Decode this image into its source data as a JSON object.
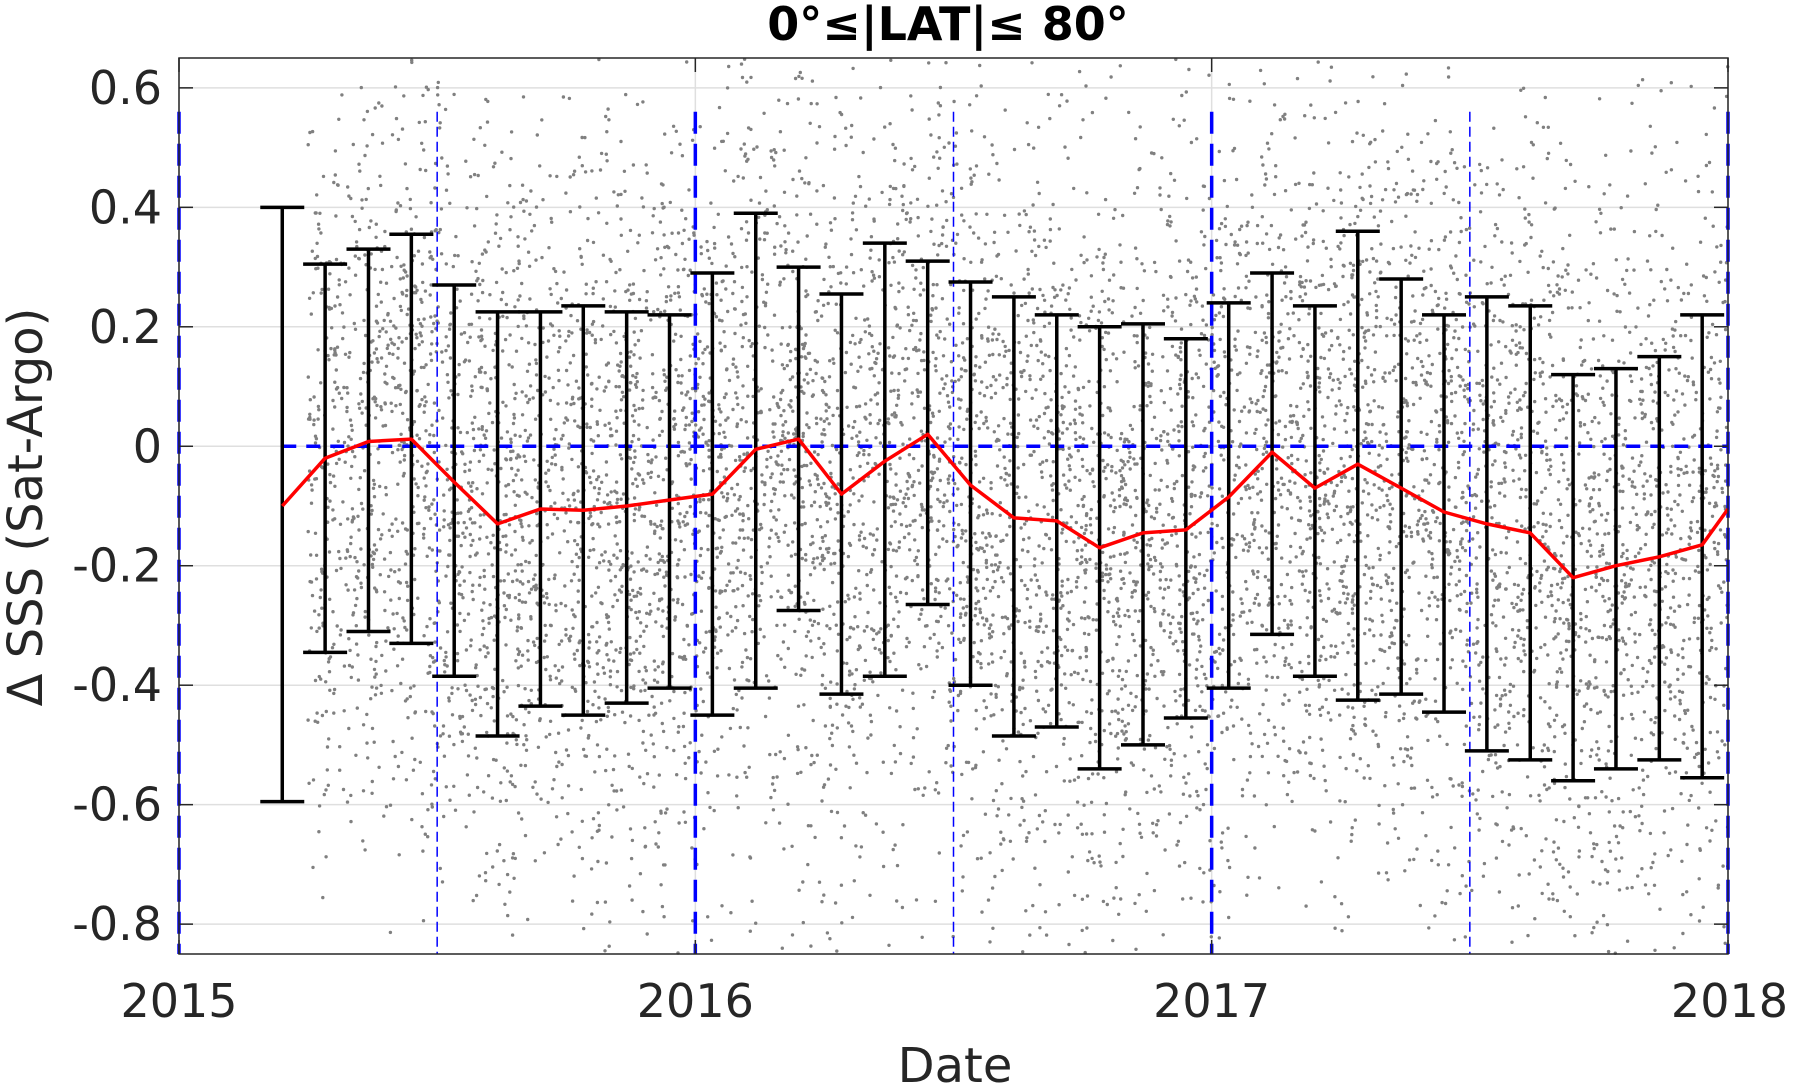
{
  "chart_data": {
    "type": "scatter",
    "title": "0°≤|LAT|≤ 80°",
    "xlabel": "Date",
    "ylabel": "Δ SSS (Sat-Argo)",
    "xlim": [
      2015.0,
      2018.0
    ],
    "ylim": [
      -0.85,
      0.65
    ],
    "xticks": [
      2015,
      2016,
      2017,
      2018
    ],
    "xtick_labels": [
      "2015",
      "2016",
      "2017",
      "2018"
    ],
    "yticks": [
      0.6,
      0.4,
      0.2,
      0,
      -0.2,
      -0.4,
      -0.6,
      -0.8
    ],
    "ytick_labels": [
      "0.6",
      "0.4",
      "0.2",
      "0",
      "-0.2",
      "-0.4",
      "-0.6",
      "-0.8"
    ],
    "grid": true,
    "colors": {
      "scatter": "#808080",
      "mean_line": "#ff0000",
      "error_bars": "#000000",
      "reference_lines": "#0000ff",
      "grid": "#dfdfdf"
    },
    "reference_lines": {
      "zero_line_y": 0,
      "year_lines_x": [
        2015.0,
        2016.0,
        2017.0,
        2018.0
      ],
      "midyear_lines_x": [
        2015.5,
        2016.5,
        2017.5
      ]
    },
    "scatter_points": {
      "description_range_y": [
        -0.85,
        0.65
      ],
      "x_range": [
        2015.25,
        2018.0
      ]
    },
    "series": [
      {
        "kind": "mean_with_errorbars",
        "x": [
          2015.2,
          2015.283,
          2015.367,
          2015.45,
          2015.533,
          2015.617,
          2015.7,
          2015.783,
          2015.867,
          2015.95,
          2016.033,
          2016.117,
          2016.2,
          2016.283,
          2016.367,
          2016.45,
          2016.533,
          2016.617,
          2016.7,
          2016.783,
          2016.867,
          2016.95,
          2017.033,
          2017.117,
          2017.2,
          2017.283,
          2017.367,
          2017.45,
          2017.533,
          2017.617,
          2017.7,
          2017.783,
          2017.867,
          2017.95
        ],
        "mean": [
          -0.1,
          -0.02,
          0.008,
          0.012,
          -0.06,
          -0.13,
          -0.105,
          -0.107,
          -0.1,
          -0.09,
          -0.08,
          -0.005,
          0.012,
          -0.08,
          -0.025,
          0.02,
          -0.065,
          -0.12,
          -0.125,
          -0.17,
          -0.145,
          -0.14,
          -0.085,
          -0.01,
          -0.07,
          -0.03,
          -0.07,
          -0.11,
          -0.13,
          -0.145,
          -0.22,
          -0.2,
          -0.185,
          -0.165
        ],
        "upper": [
          0.4,
          0.305,
          0.33,
          0.355,
          0.27,
          0.225,
          0.225,
          0.235,
          0.225,
          0.22,
          0.29,
          0.39,
          0.3,
          0.255,
          0.34,
          0.31,
          0.275,
          0.25,
          0.22,
          0.2,
          0.205,
          0.18,
          0.24,
          0.29,
          0.235,
          0.36,
          0.28,
          0.22,
          0.25,
          0.235,
          0.12,
          0.13,
          0.15,
          0.22
        ],
        "lower": [
          -0.595,
          -0.345,
          -0.31,
          -0.33,
          -0.385,
          -0.485,
          -0.435,
          -0.45,
          -0.43,
          -0.405,
          -0.45,
          -0.405,
          -0.275,
          -0.415,
          -0.385,
          -0.265,
          -0.4,
          -0.485,
          -0.47,
          -0.54,
          -0.5,
          -0.455,
          -0.405,
          -0.315,
          -0.385,
          -0.425,
          -0.415,
          -0.445,
          -0.51,
          -0.525,
          -0.56,
          -0.54,
          -0.525,
          -0.555
        ]
      }
    ],
    "mean_line_end": {
      "x": 2018.0,
      "y": -0.105
    }
  }
}
